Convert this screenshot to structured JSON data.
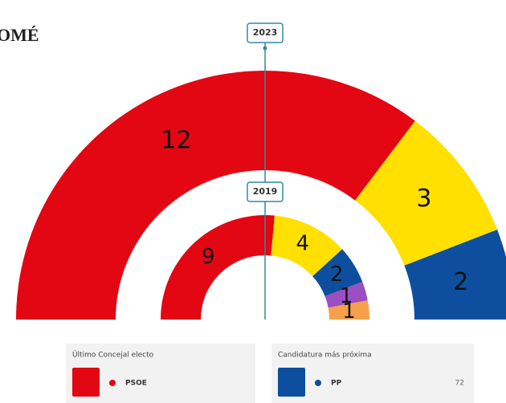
{
  "title": "OMÉ",
  "chart_data": [
    {
      "type": "hemicycle",
      "label": "2023",
      "values": [
        12,
        3,
        2
      ],
      "colors": [
        "#e30613",
        "#ffe000",
        "#0d4f9e"
      ]
    },
    {
      "type": "hemicycle",
      "label": "2019",
      "values": [
        9,
        4,
        2,
        1,
        1
      ],
      "colors": [
        "#e30613",
        "#ffe000",
        "#0d4f9e",
        "#9b4fc2",
        "#f7a04b"
      ]
    }
  ],
  "panel": {
    "left": {
      "title": "Último Concejal electo",
      "party": "PSOE",
      "color": "#e30613"
    },
    "right": {
      "title": "Candidatura más próxima",
      "party": "PP",
      "color": "#0d4f9e",
      "value": 72
    }
  }
}
